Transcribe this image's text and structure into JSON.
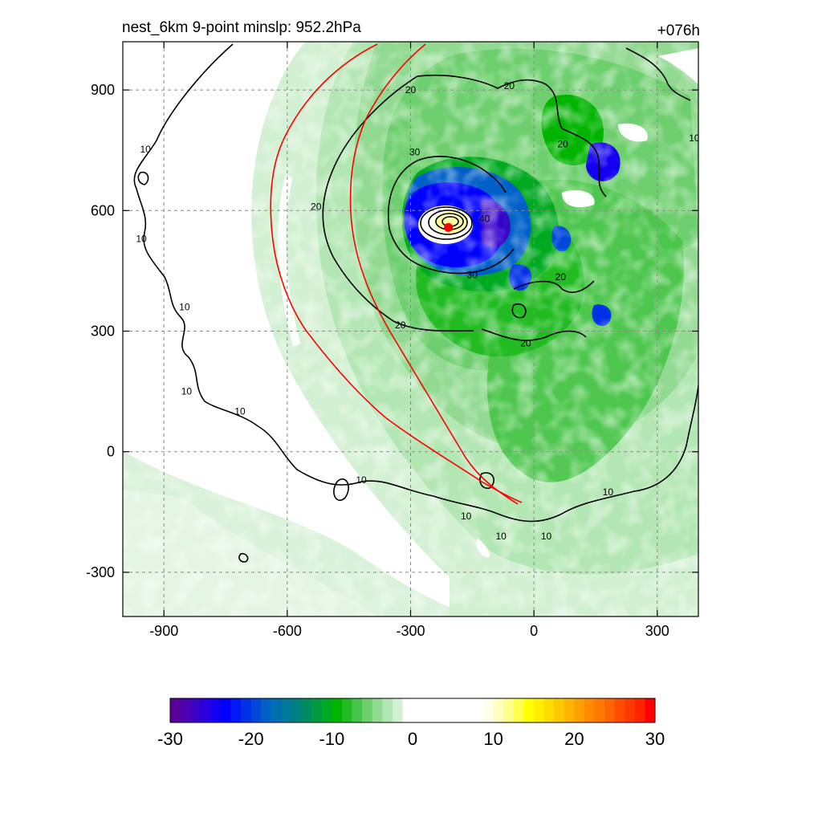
{
  "chart_data": {
    "type": "contour",
    "title": "nest_6km  9-point minslp: 952.2hPa",
    "forecast_hour": "+076h",
    "xlabel": "",
    "ylabel": "",
    "xlim": [
      -1000,
      400
    ],
    "ylim": [
      -410,
      1020
    ],
    "x_ticks": [
      -900,
      -600,
      -300,
      0,
      300
    ],
    "y_ticks": [
      -300,
      0,
      300,
      600,
      900
    ],
    "x_tick_labels": [
      "-900",
      "-600",
      "-300",
      "0",
      "300"
    ],
    "y_tick_labels": [
      "-300",
      "0",
      "300",
      "600",
      "900"
    ],
    "grid": true,
    "center_marker": {
      "x": -208,
      "y": 558,
      "color": "#ff0000"
    },
    "contour_labels": [
      {
        "text": "20",
        "x": -300,
        "y": 900
      },
      {
        "text": "20",
        "x": -60,
        "y": 910
      },
      {
        "text": "10",
        "x": -945,
        "y": 752
      },
      {
        "text": "10",
        "x": -955,
        "y": 530
      },
      {
        "text": "10",
        "x": -850,
        "y": 360
      },
      {
        "text": "10",
        "x": -845,
        "y": 150
      },
      {
        "text": "10",
        "x": -715,
        "y": 100
      },
      {
        "text": "20",
        "x": -530,
        "y": 610
      },
      {
        "text": "30",
        "x": -290,
        "y": 745
      },
      {
        "text": "30",
        "x": -150,
        "y": 440
      },
      {
        "text": "40",
        "x": -120,
        "y": 580
      },
      {
        "text": "20",
        "x": 65,
        "y": 435
      },
      {
        "text": "20",
        "x": -325,
        "y": 315
      },
      {
        "text": "20",
        "x": -20,
        "y": 270
      },
      {
        "text": "20",
        "x": 70,
        "y": 765
      },
      {
        "text": "10",
        "x": 390,
        "y": 780
      },
      {
        "text": "10",
        "x": -420,
        "y": -70
      },
      {
        "text": "10",
        "x": -165,
        "y": -160
      },
      {
        "text": "10",
        "x": -80,
        "y": -210
      },
      {
        "text": "10",
        "x": 30,
        "y": -210
      },
      {
        "text": "10",
        "x": 180,
        "y": -100
      }
    ],
    "colorbar": {
      "min": -30,
      "max": 30,
      "tick_values": [
        -30,
        -20,
        -10,
        0,
        10,
        20,
        30
      ],
      "tick_labels": [
        "-30",
        "-20",
        "-10",
        "0",
        "10",
        "20",
        "30"
      ],
      "colors": [
        "#5a009a",
        "#4c00b0",
        "#3c00c6",
        "#2a00dc",
        "#1400f0",
        "#0000ff",
        "#0018f5",
        "#0030e8",
        "#0048d8",
        "#0060c8",
        "#006eb0",
        "#007898",
        "#008080",
        "#008c60",
        "#009a40",
        "#00aa20",
        "#00b400",
        "#22bc22",
        "#48c448",
        "#6ecf6e",
        "#92da92",
        "#b2e6b2",
        "#d2f0d2",
        "#ffffff",
        "#ffffff",
        "#ffffff",
        "#ffffff",
        "#ffffff",
        "#ffffff",
        "#ffffff",
        "#ffffff",
        "#ffffea",
        "#ffffc0",
        "#ffff8c",
        "#ffff50",
        "#ffff00",
        "#ffee00",
        "#ffdc00",
        "#ffc800",
        "#ffb400",
        "#ffa000",
        "#ff8c00",
        "#ff7800",
        "#ff6400",
        "#ff4c00",
        "#ff3800",
        "#ff2400",
        "#ff0000"
      ]
    }
  }
}
